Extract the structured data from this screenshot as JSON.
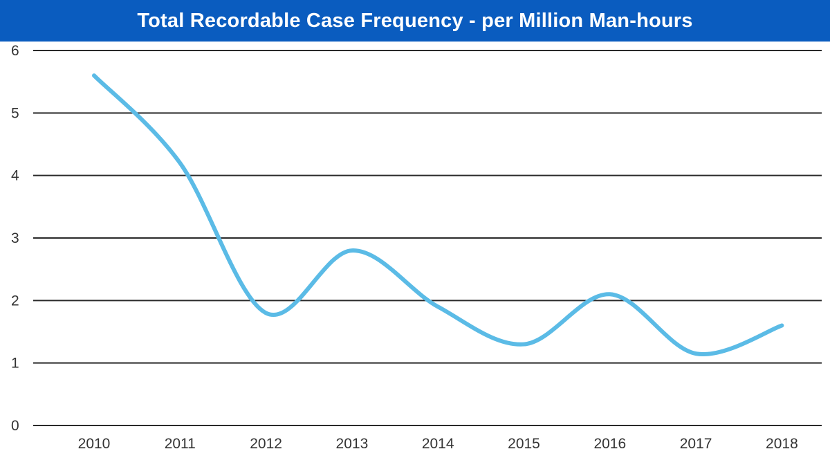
{
  "chart_data": {
    "type": "line",
    "title": "Total Recordable Case Frequency - per Million Man-hours",
    "xlabel": "",
    "ylabel": "",
    "categories": [
      "2010",
      "2011",
      "2012",
      "2013",
      "2014",
      "2015",
      "2016",
      "2017",
      "2018"
    ],
    "series": [
      {
        "values": [
          5.6,
          4.2,
          1.8,
          2.8,
          1.9,
          1.3,
          2.1,
          1.15,
          1.6
        ]
      }
    ],
    "ylim": [
      0,
      6
    ],
    "yticks": [
      "0",
      "1",
      "2",
      "3",
      "4",
      "5",
      "6"
    ],
    "grid": true,
    "legend": "none",
    "smooth": true
  },
  "colors": {
    "title_bar": "#0a5cbf",
    "line": "#5bbbe6",
    "grid": "#2a2a2a"
  }
}
